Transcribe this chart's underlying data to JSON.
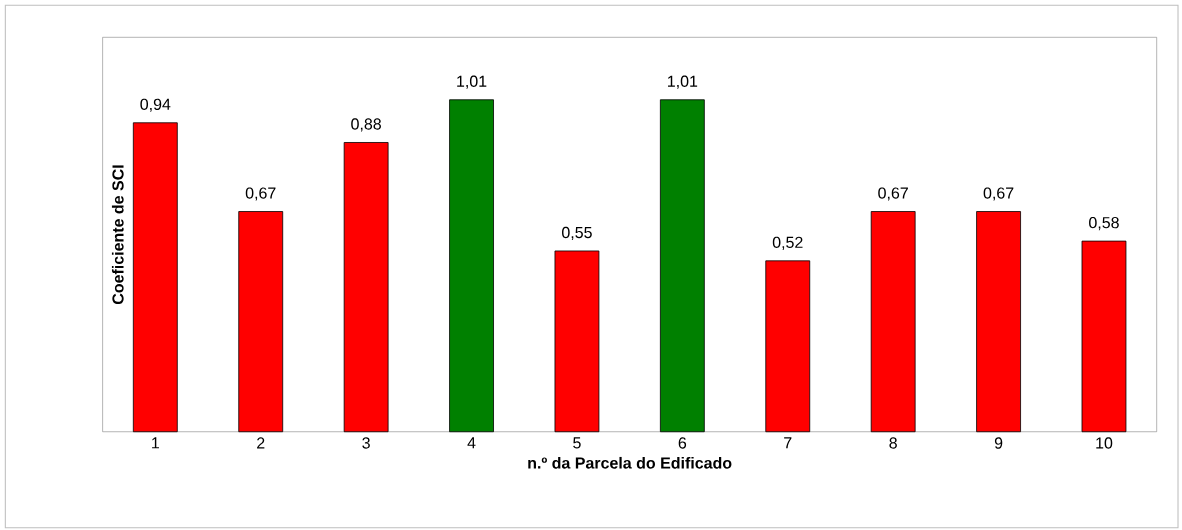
{
  "chart_data": {
    "type": "bar",
    "xlabel": "n.º da Parcela do Edificado",
    "ylabel": "Coeficiente de SCI",
    "categories": [
      "1",
      "2",
      "3",
      "4",
      "5",
      "6",
      "7",
      "8",
      "9",
      "10"
    ],
    "values": [
      0.94,
      0.67,
      0.88,
      1.01,
      0.55,
      1.01,
      0.52,
      0.67,
      0.67,
      0.58
    ],
    "value_labels": [
      "0,94",
      "0,67",
      "0,88",
      "1,01",
      "0,55",
      "1,01",
      "0,52",
      "0,67",
      "0,67",
      "0,58"
    ],
    "colors": [
      "#ff0000",
      "#ff0000",
      "#ff0000",
      "#008000",
      "#ff0000",
      "#008000",
      "#ff0000",
      "#ff0000",
      "#ff0000",
      "#ff0000"
    ],
    "ylim": [
      0,
      1.2
    ],
    "tick_labels": "x"
  }
}
